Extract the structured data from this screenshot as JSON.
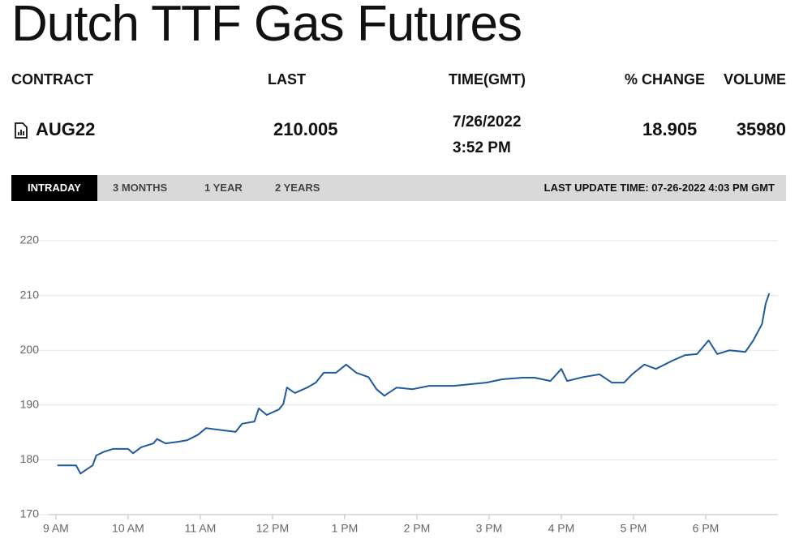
{
  "header": {
    "title": "Dutch TTF Gas Futures"
  },
  "table": {
    "columns": [
      "CONTRACT",
      "LAST",
      "TIME(GMT)",
      "% CHANGE",
      "VOLUME"
    ],
    "row": {
      "contract": "AUG22",
      "last": 210.005,
      "time": [
        "7/26/2022",
        "3:52 PM"
      ],
      "change": 18.905,
      "volume": 35980
    }
  },
  "tabs": {
    "items": [
      "INTRADAY",
      "3 MONTHS",
      "1 YEAR",
      "2 YEARS"
    ],
    "last_update": "LAST UPDATE TIME: 07-26-2022 4:03 PM GMT"
  },
  "chart_data": {
    "type": "line",
    "color": "#1f5a9e",
    "grid": true,
    "x": [
      9.02,
      9.28,
      9.34,
      9.51,
      9.56,
      9.67,
      9.79,
      10.0,
      10.07,
      10.18,
      10.35,
      10.4,
      10.52,
      10.69,
      10.82,
      10.97,
      11.08,
      11.25,
      11.49,
      11.58,
      11.75,
      11.81,
      11.92,
      12.09,
      12.15,
      12.2,
      12.31,
      12.48,
      12.6,
      12.71,
      12.88,
      13.02,
      13.16,
      13.33,
      13.44,
      13.55,
      13.72,
      13.94,
      14.17,
      14.51,
      14.73,
      14.96,
      15.18,
      15.46,
      15.63,
      15.85,
      16.0,
      16.08,
      16.3,
      16.53,
      16.7,
      16.87,
      16.98,
      17.15,
      17.31,
      17.54,
      17.71,
      17.88,
      18.04,
      18.16,
      18.33,
      18.55,
      18.66,
      18.78,
      18.83,
      18.88
    ],
    "values": [
      179.0,
      179.0,
      177.5,
      179.0,
      180.8,
      181.5,
      182.0,
      182.0,
      181.2,
      182.3,
      183.0,
      183.8,
      183.0,
      183.3,
      183.6,
      184.6,
      185.8,
      185.5,
      185.1,
      186.6,
      187.0,
      189.4,
      188.2,
      189.2,
      190.2,
      193.2,
      192.2,
      193.2,
      194.1,
      195.9,
      195.9,
      197.4,
      195.9,
      195.1,
      192.9,
      191.7,
      193.2,
      192.9,
      193.5,
      193.5,
      193.8,
      194.1,
      194.7,
      195.0,
      195.0,
      194.4,
      196.6,
      194.4,
      195.1,
      195.6,
      194.1,
      194.1,
      195.6,
      197.4,
      196.6,
      198.1,
      199.1,
      199.3,
      201.8,
      199.3,
      200.0,
      199.7,
      201.8,
      204.8,
      208.5,
      210.4
    ],
    "xlim": [
      8.9,
      19.0
    ],
    "xticks": [
      {
        "value": 9,
        "label": "9 AM"
      },
      {
        "value": 10,
        "label": "10 AM"
      },
      {
        "value": 11,
        "label": "11 AM"
      },
      {
        "value": 12,
        "label": "12 PM"
      },
      {
        "value": 13,
        "label": "1 PM"
      },
      {
        "value": 14,
        "label": "2 PM"
      },
      {
        "value": 15,
        "label": "3 PM"
      },
      {
        "value": 16,
        "label": "4 PM"
      },
      {
        "value": 17,
        "label": "5 PM"
      },
      {
        "value": 18,
        "label": "6 PM"
      }
    ],
    "ylim": [
      170,
      220
    ],
    "yticks": [
      170,
      180,
      190,
      200,
      210,
      220
    ]
  }
}
